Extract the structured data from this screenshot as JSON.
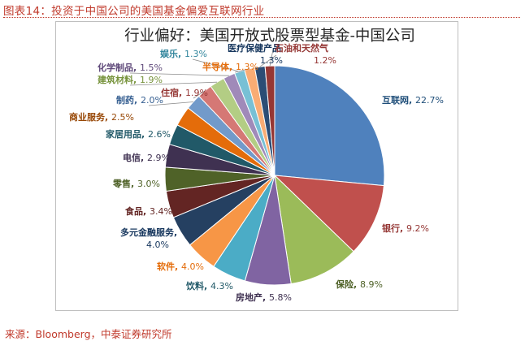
{
  "header": {
    "figure_title": "图表14：投资于中国公司的美国基金偏爱互联网行业"
  },
  "footer": {
    "source": "来源：Bloomberg，中泰证券研究所"
  },
  "chart_data": {
    "type": "pie",
    "title": "行业偏好：美国开放式股票型基金-中国公司",
    "slices": [
      {
        "name": "互联网",
        "value": 22.7,
        "display": "22.7%",
        "color": "#4f81bd",
        "label_color": "#1f4e79"
      },
      {
        "name": "银行",
        "value": 9.2,
        "display": "9.2%",
        "color": "#c0504d",
        "label_color": "#953735"
      },
      {
        "name": "保险",
        "value": 8.9,
        "display": "8.9%",
        "color": "#9bbb59",
        "label_color": "#4f6228"
      },
      {
        "name": "房地产",
        "value": 5.8,
        "display": "5.8%",
        "color": "#8064a2",
        "label_color": "#3f3151"
      },
      {
        "name": "饮料",
        "value": 4.3,
        "display": "4.3%",
        "color": "#4bacc6",
        "label_color": "#215968"
      },
      {
        "name": "软件",
        "value": 4.0,
        "display": "4.0%",
        "color": "#f79646",
        "label_color": "#e46c0a"
      },
      {
        "name": "多元金融服务",
        "value": 4.0,
        "display": "4.0%",
        "color": "#254061",
        "label_color": "#17375e"
      },
      {
        "name": "食品",
        "value": 3.4,
        "display": "3.4%",
        "color": "#632523",
        "label_color": "#632523"
      },
      {
        "name": "零售",
        "value": 3.0,
        "display": "3.0%",
        "color": "#4f6228",
        "label_color": "#4f6228"
      },
      {
        "name": "电信",
        "value": 2.9,
        "display": "2.9%",
        "color": "#3f3151",
        "label_color": "#3f3151"
      },
      {
        "name": "家居用品",
        "value": 2.6,
        "display": "2.6%",
        "color": "#215968",
        "label_color": "#215968"
      },
      {
        "name": "商业服务",
        "value": 2.5,
        "display": "2.5%",
        "color": "#e46c0a",
        "label_color": "#984807"
      },
      {
        "name": "制药",
        "value": 2.0,
        "display": "2.0%",
        "color": "#729aca",
        "label_color": "#376092"
      },
      {
        "name": "住宿",
        "value": 1.9,
        "display": "1.9%",
        "color": "#d57875",
        "label_color": "#953735"
      },
      {
        "name": "建筑材料",
        "value": 1.9,
        "display": "1.9%",
        "color": "#b3cd84",
        "label_color": "#77933c"
      },
      {
        "name": "化学制品",
        "value": 1.5,
        "display": "1.5%",
        "color": "#a08ab9",
        "label_color": "#5f497a"
      },
      {
        "name": "娱乐",
        "value": 1.3,
        "display": "1.3%",
        "color": "#78c0d5",
        "label_color": "#31859c"
      },
      {
        "name": "半导体",
        "value": 1.3,
        "display": "1.3%",
        "color": "#f9ac74",
        "label_color": "#e46c0a"
      },
      {
        "name": "医疗保健产品",
        "value": 1.3,
        "display": "1.3%",
        "color": "#2c4d75",
        "label_color": "#17375e"
      },
      {
        "name": "石油和天然气",
        "value": 1.2,
        "display": "1.2%",
        "color": "#963734",
        "label_color": "#953735"
      }
    ],
    "legend": "none"
  }
}
